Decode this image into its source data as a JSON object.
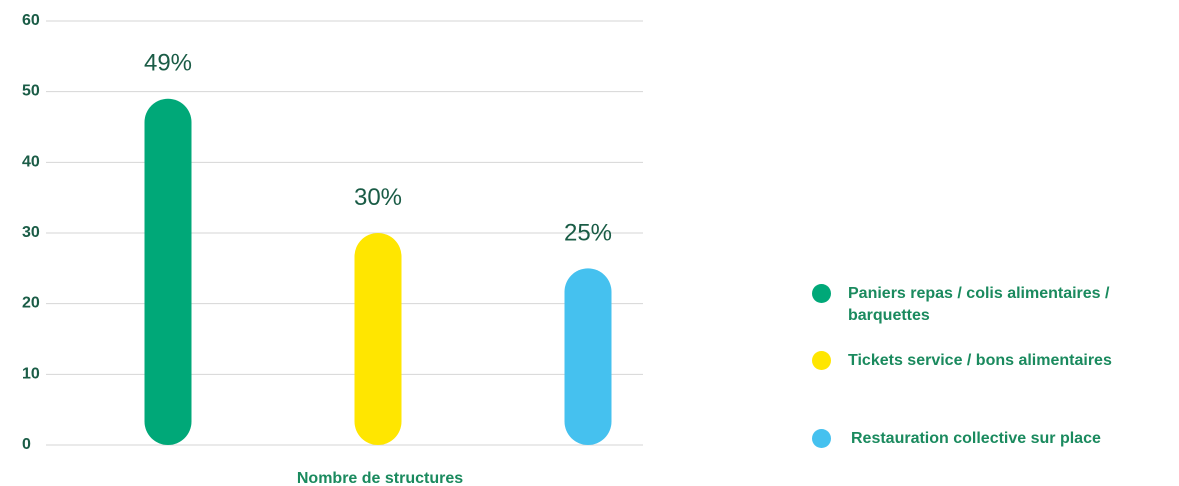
{
  "chart_data": {
    "type": "bar",
    "categories": [
      "Paniers repas / colis alimentaires / barquettes",
      "Tickets service / bons alimentaires",
      "Restauration collective sur place"
    ],
    "values": [
      49,
      30,
      25
    ],
    "data_labels": [
      "49%",
      "30%",
      "25%"
    ],
    "colors": [
      "#00a878",
      "#ffe600",
      "#45c1ef"
    ],
    "xlabel": "Nombre de structures",
    "ylabel": "",
    "ylim": [
      0,
      60
    ],
    "yticks": [
      "0",
      "10",
      "20",
      "30",
      "40",
      "50",
      "60"
    ],
    "grid": true,
    "legend_position": "right"
  }
}
